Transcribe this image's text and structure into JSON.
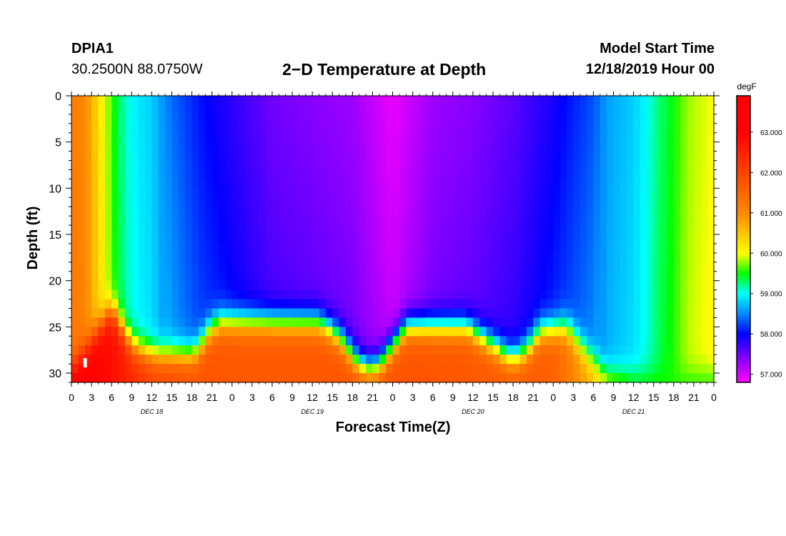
{
  "header": {
    "station": "DPIA1",
    "coordinates": "30.2500N 88.0750W",
    "title": "2−D Temperature at Depth",
    "model_start_label": "Model Start Time",
    "model_start_value": "12/18/2019 Hour 00"
  },
  "chart_data": {
    "type": "heatmap",
    "title": "2−D Temperature at Depth",
    "xlabel": "Forecast Time(Z)",
    "ylabel": "Depth (ft)",
    "x_unit": "hours from 12/18/2019 00Z",
    "xlim": [
      0,
      96
    ],
    "ylim": [
      0,
      31
    ],
    "y_ticks": [
      0,
      5,
      10,
      15,
      20,
      25,
      30
    ],
    "x_tick_labels": [
      "0",
      "3",
      "6",
      "9",
      "12",
      "15",
      "18",
      "21",
      "0",
      "3",
      "6",
      "9",
      "12",
      "15",
      "18",
      "21",
      "0",
      "3",
      "6",
      "9",
      "12",
      "15",
      "18",
      "21",
      "0",
      "3",
      "6",
      "9",
      "12",
      "15",
      "18",
      "21",
      "0"
    ],
    "day_labels": [
      {
        "hour": 12,
        "label": "DEC 18"
      },
      {
        "hour": 36,
        "label": "DEC 19"
      },
      {
        "hour": 60,
        "label": "DEC 20"
      },
      {
        "hour": 84,
        "label": "DEC 21"
      }
    ],
    "colorbar": {
      "unit": "degF",
      "min": 56.8,
      "max": 63.9,
      "tick_values": [
        57,
        58,
        59,
        60,
        61,
        62,
        63
      ],
      "tick_labels": [
        "57.000",
        "58.000",
        "59.000",
        "60.000",
        "61.000",
        "62.000",
        "63.000"
      ],
      "stops": [
        {
          "value": 56.8,
          "color": "#ff00ff"
        },
        {
          "value": 57.4,
          "color": "#8800ff"
        },
        {
          "value": 58.0,
          "color": "#0000ff"
        },
        {
          "value": 58.5,
          "color": "#0088ff"
        },
        {
          "value": 59.0,
          "color": "#00ffff"
        },
        {
          "value": 59.5,
          "color": "#00ff00"
        },
        {
          "value": 60.0,
          "color": "#ffff00"
        },
        {
          "value": 61.0,
          "color": "#ff8800"
        },
        {
          "value": 62.0,
          "color": "#ff4400"
        },
        {
          "value": 63.0,
          "color": "#ff0000"
        },
        {
          "value": 63.9,
          "color": "#ff0000"
        }
      ]
    },
    "surface_temperature_profile": {
      "hours": [
        0,
        2,
        4,
        6,
        8,
        10,
        12,
        14,
        16,
        20,
        24,
        30,
        36,
        42,
        48,
        54,
        60,
        66,
        72,
        78,
        80,
        84,
        86,
        88,
        90,
        92,
        96
      ],
      "temp_degF": [
        61.2,
        61.0,
        60.3,
        59.6,
        59.1,
        58.9,
        58.8,
        58.5,
        58.3,
        58.0,
        57.8,
        57.5,
        57.4,
        57.3,
        56.9,
        57.3,
        57.4,
        57.6,
        57.9,
        58.3,
        58.6,
        58.8,
        59.0,
        59.3,
        59.5,
        59.8,
        60.0
      ]
    },
    "thermocline_depth_ft": {
      "hours": [
        0,
        6,
        9,
        12,
        15,
        18,
        19,
        20,
        22,
        30,
        37,
        40,
        43,
        45,
        46,
        48,
        50,
        54,
        59,
        62,
        66,
        68,
        70,
        74,
        78,
        80,
        83,
        86,
        88,
        90,
        92,
        96
      ],
      "depth": [
        29.5,
        23.0,
        27.0,
        28.0,
        28.0,
        28.0,
        27.5,
        26.0,
        24.5,
        24.5,
        24.5,
        26.0,
        29.0,
        29.5,
        29.0,
        27.0,
        25.0,
        25.0,
        25.0,
        26.5,
        28.5,
        27.5,
        25.5,
        25.0,
        28.5,
        30.0,
        30.0,
        30.0,
        30.0,
        30.0,
        30.0,
        30.0
      ]
    },
    "bottom_temperature_degF": {
      "hours": [
        0,
        6,
        12,
        18,
        24,
        36,
        48,
        60,
        72,
        78,
        84,
        96
      ],
      "temp_degF": [
        63.2,
        62.8,
        62.0,
        61.8,
        61.7,
        61.7,
        61.8,
        61.7,
        61.6,
        60.5,
        59.6,
        59.5
      ]
    },
    "marker": {
      "hour": 2,
      "depth": 29,
      "color": "#ffffff"
    }
  }
}
